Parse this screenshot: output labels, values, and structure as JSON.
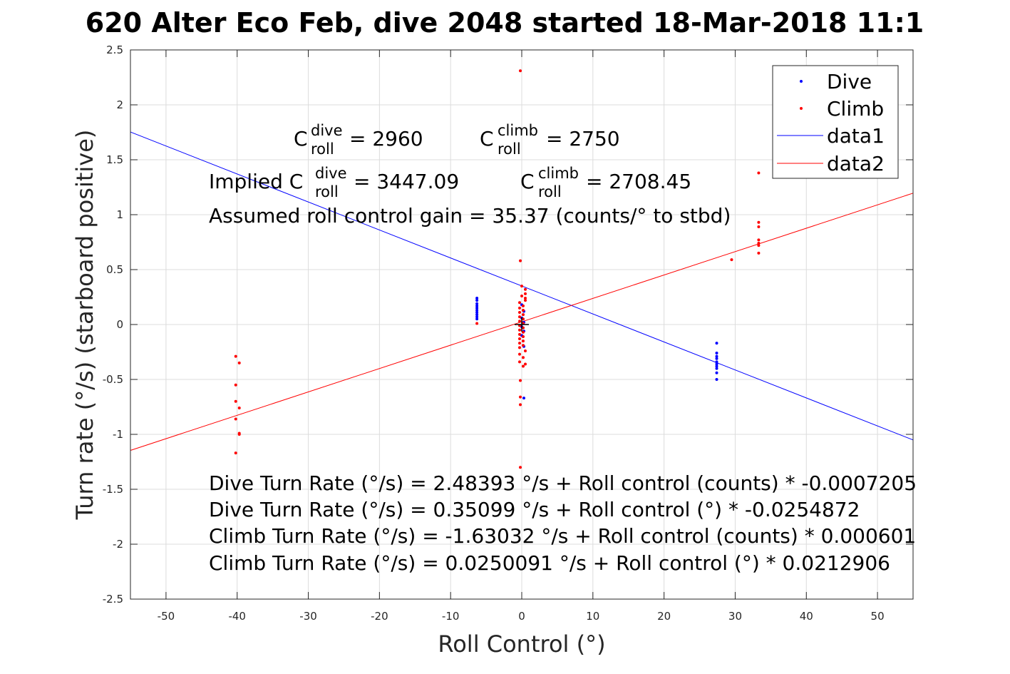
{
  "chart_data": {
    "type": "scatter",
    "title": "620 Alter Eco Feb, dive 2048 started 18-Mar-2018 11:1",
    "xlabel": "Roll Control (°)",
    "ylabel": "Turn rate (°/s) (starboard positive)",
    "xlim": [
      -55,
      55
    ],
    "ylim": [
      -2.5,
      2.5
    ],
    "xticks": [
      -50,
      -40,
      -30,
      -20,
      -10,
      0,
      10,
      20,
      30,
      40,
      50
    ],
    "yticks": [
      -2.5,
      -2,
      -1.5,
      -1,
      -0.5,
      0,
      0.5,
      1,
      1.5,
      2,
      2.5
    ],
    "xtick_labels": [
      "-50",
      "-40",
      "-30",
      "-20",
      "-10",
      "0",
      "10",
      "20",
      "30",
      "40",
      "50"
    ],
    "ytick_labels": [
      "-2.5",
      "-2",
      "-1.5",
      "-1",
      "-0.5",
      "0",
      "0.5",
      "1",
      "1.5",
      "2",
      "2.5"
    ],
    "grid": true,
    "legend_position": "top-right",
    "series": [
      {
        "name": "Dive",
        "kind": "points",
        "color": "#0000ff",
        "points": [
          [
            -6.3,
            0.24
          ],
          [
            -6.3,
            0.22
          ],
          [
            -6.3,
            0.19
          ],
          [
            -6.3,
            0.17
          ],
          [
            -6.3,
            0.15
          ],
          [
            -6.3,
            0.13
          ],
          [
            -6.3,
            0.11
          ],
          [
            -6.3,
            0.09
          ],
          [
            -6.3,
            0.07
          ],
          [
            -6.3,
            0.05
          ],
          [
            0,
            0.18
          ],
          [
            0.3,
            0.12
          ],
          [
            0,
            0.06
          ],
          [
            0.3,
            0.02
          ],
          [
            0,
            -0.02
          ],
          [
            0.3,
            -0.06
          ],
          [
            0,
            -0.1
          ],
          [
            0.3,
            -0.2
          ],
          [
            0.3,
            -0.67
          ],
          [
            27.4,
            -0.17
          ],
          [
            27.4,
            -0.26
          ],
          [
            27.4,
            -0.29
          ],
          [
            27.4,
            -0.31
          ],
          [
            27.4,
            -0.34
          ],
          [
            27.4,
            -0.36
          ],
          [
            27.4,
            -0.38
          ],
          [
            27.4,
            -0.4
          ],
          [
            27.4,
            -0.44
          ],
          [
            27.4,
            -0.5
          ]
        ]
      },
      {
        "name": "Climb",
        "kind": "points",
        "color": "#ff0000",
        "points": [
          [
            -40.2,
            -0.29
          ],
          [
            -39.7,
            -0.35
          ],
          [
            -40.2,
            -0.55
          ],
          [
            -40.2,
            -0.7
          ],
          [
            -39.7,
            -0.76
          ],
          [
            -40.2,
            -0.86
          ],
          [
            -39.7,
            -0.99
          ],
          [
            -39.7,
            -1.0
          ],
          [
            -40.2,
            -1.17
          ],
          [
            -6.3,
            0.01
          ],
          [
            -0.2,
            2.31
          ],
          [
            -0.2,
            0.58
          ],
          [
            0,
            0.35
          ],
          [
            0.5,
            0.32
          ],
          [
            0.5,
            0.28
          ],
          [
            0,
            0.26
          ],
          [
            0.5,
            0.24
          ],
          [
            0.5,
            0.22
          ],
          [
            -0.3,
            0.2
          ],
          [
            0.2,
            0.17
          ],
          [
            -0.3,
            0.15
          ],
          [
            0.2,
            0.13
          ],
          [
            -0.3,
            0.11
          ],
          [
            0.2,
            0.09
          ],
          [
            -0.3,
            0.07
          ],
          [
            0.2,
            0.05
          ],
          [
            -0.3,
            0.03
          ],
          [
            0.2,
            0.01
          ],
          [
            -0.3,
            -0.01
          ],
          [
            0.2,
            -0.03
          ],
          [
            -0.3,
            -0.05
          ],
          [
            0.2,
            -0.07
          ],
          [
            -0.3,
            -0.09
          ],
          [
            0.2,
            -0.11
          ],
          [
            -0.3,
            -0.13
          ],
          [
            0.2,
            -0.15
          ],
          [
            -0.3,
            -0.17
          ],
          [
            0.2,
            -0.19
          ],
          [
            -0.3,
            -0.21
          ],
          [
            0.5,
            -0.24
          ],
          [
            -0.3,
            -0.27
          ],
          [
            0.2,
            -0.3
          ],
          [
            -0.3,
            -0.34
          ],
          [
            0.5,
            -0.36
          ],
          [
            0.2,
            -0.38
          ],
          [
            -0.2,
            -0.51
          ],
          [
            -0.2,
            -0.66
          ],
          [
            -0.2,
            -0.73
          ],
          [
            -0.2,
            -1.3
          ],
          [
            29.5,
            0.59
          ],
          [
            33.3,
            1.38
          ],
          [
            33.3,
            0.93
          ],
          [
            33.3,
            0.89
          ],
          [
            33.3,
            0.77
          ],
          [
            33.3,
            0.74
          ],
          [
            33.3,
            0.72
          ],
          [
            33.3,
            0.65
          ]
        ]
      },
      {
        "name": "data1",
        "kind": "line",
        "color": "#0000ff",
        "intercept": 0.35099,
        "slope": -0.0254872
      },
      {
        "name": "data2",
        "kind": "line",
        "color": "#ff0000",
        "intercept": 0.0250091,
        "slope": 0.0212906
      }
    ],
    "center_marker": {
      "x": 0,
      "y": 0,
      "color": "#000000"
    },
    "annotations": {
      "c_roll_dive": {
        "base": "C",
        "sup": "dive",
        "sub": "roll",
        "rest": " = 2960"
      },
      "c_roll_climb": {
        "base": "C",
        "sup": "climb",
        "sub": "roll",
        "rest": " = 2750"
      },
      "implied_dive": {
        "prefix": "Implied C",
        "sup": "dive",
        "sub": "roll",
        "rest": " = 3447.09"
      },
      "implied_climb": {
        "base": "C",
        "sup": "climb",
        "sub": "roll",
        "rest": " = 2708.45"
      },
      "gain": "Assumed roll control gain = 35.37 (counts/° to stbd)",
      "equations": [
        "Dive Turn Rate (°/s) = 2.48393 °/s + Roll control (counts) * -0.0007205",
        "Dive Turn Rate (°/s) = 0.35099 °/s + Roll control (°) * -0.0254872",
        "Climb Turn Rate (°/s) = -1.63032 °/s + Roll control (counts) * 0.000601",
        "Climb Turn Rate (°/s) = 0.0250091 °/s + Roll control (°) * 0.0212906"
      ]
    }
  }
}
